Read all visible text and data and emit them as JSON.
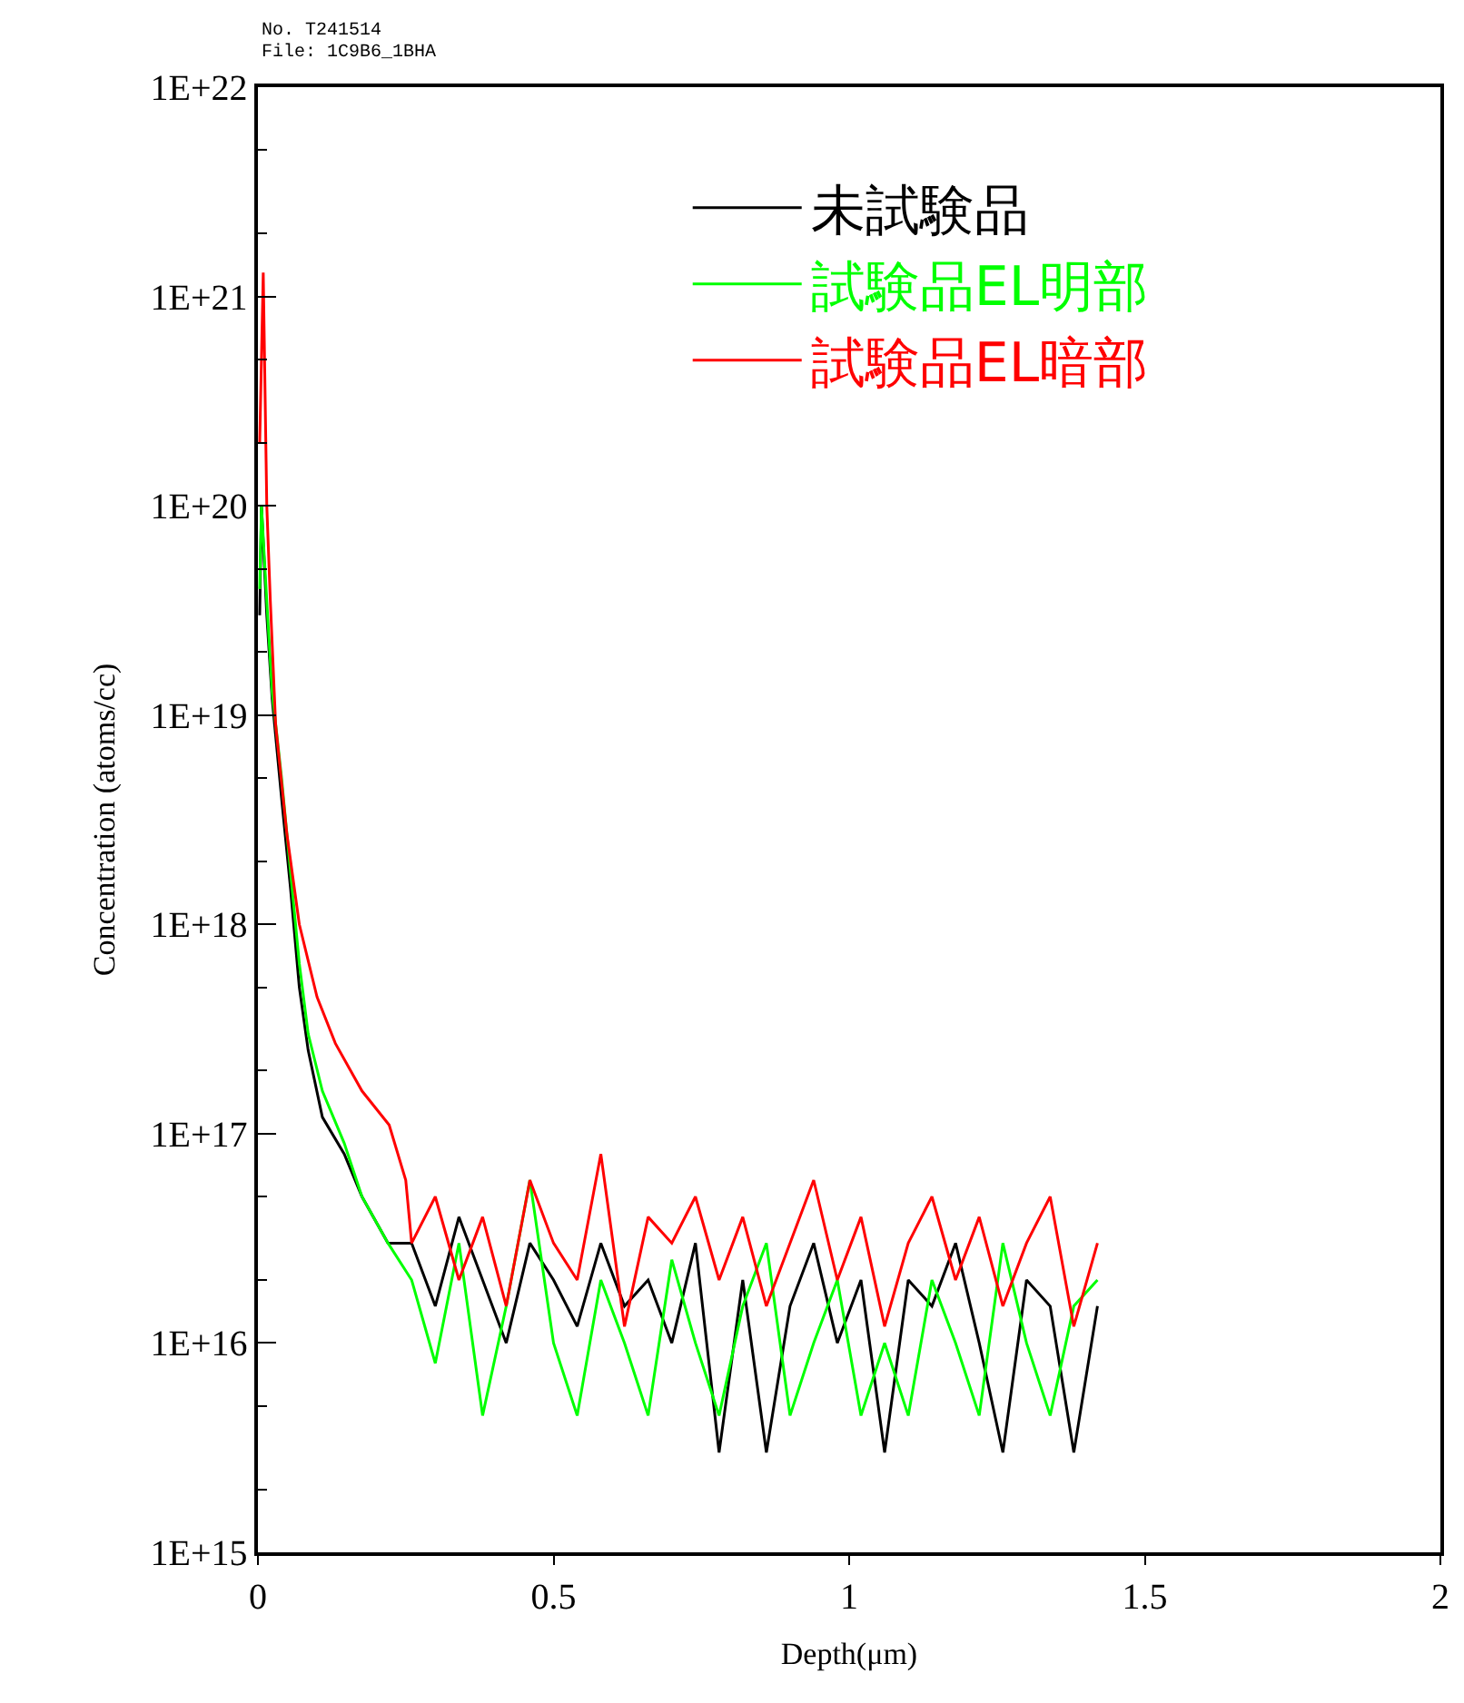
{
  "chart_data": {
    "type": "line",
    "xlabel": "Depth(μm)",
    "ylabel": "Concentration (atoms/cc)",
    "annotations": [
      "No. T241514",
      "File: 1C9B6_1BHA"
    ],
    "log": "y",
    "legend": "top right",
    "marker": "none",
    "line_style": "solid",
    "xlim": [
      0,
      2
    ],
    "xticks": [
      0,
      0.5,
      1,
      1.5,
      2
    ],
    "ylim": [
      1000000000000000.0,
      1e+22
    ],
    "yticks": [
      {
        "value": 1000000000000000.0,
        "label": "1E+15"
      },
      {
        "value": 1e+16,
        "label": "1E+16"
      },
      {
        "value": 1e+17,
        "label": "1E+17"
      },
      {
        "value": 1e+18,
        "label": "1E+18"
      },
      {
        "value": 1e+19,
        "label": "1E+19"
      },
      {
        "value": 1e+20,
        "label": "1E+20"
      },
      {
        "value": 1e+21,
        "label": "1E+21"
      },
      {
        "value": 1e+22,
        "label": "1E+22"
      }
    ],
    "series": [
      {
        "name": "未試験品",
        "color": "#000000",
        "x": [
          0.003,
          0.006,
          0.015,
          0.024,
          0.04,
          0.055,
          0.07,
          0.085,
          0.109,
          0.146,
          0.176,
          0.22,
          0.26,
          0.3,
          0.34,
          0.38,
          0.42,
          0.46,
          0.5,
          0.54,
          0.58,
          0.62,
          0.66,
          0.7,
          0.74,
          0.78,
          0.82,
          0.86,
          0.9,
          0.94,
          0.98,
          1.02,
          1.06,
          1.1,
          1.14,
          1.18,
          1.22,
          1.26,
          1.3,
          1.34,
          1.38,
          1.42
        ],
        "values": [
          3e+19,
          1e+20,
          3e+19,
          1.2e+19,
          4e+18,
          1.5e+18,
          5e+17,
          2.5e+17,
          1.2e+17,
          8e+16,
          5e+16,
          3e+16,
          3e+16,
          1.5e+16,
          4e+16,
          2e+16,
          1e+16,
          3e+16,
          2e+16,
          1.2e+16,
          3e+16,
          1.5e+16,
          2e+16,
          1e+16,
          3e+16,
          3000000000000000.0,
          2e+16,
          3000000000000000.0,
          1.5e+16,
          3e+16,
          1e+16,
          2e+16,
          3000000000000000.0,
          2e+16,
          1.5e+16,
          3e+16,
          1e+16,
          3000000000000000.0,
          2e+16,
          1.5e+16,
          3000000000000000.0,
          1.5e+16
        ]
      },
      {
        "name": "試験品EL明部",
        "color": "#00ff00",
        "x": [
          0.003,
          0.006,
          0.015,
          0.024,
          0.04,
          0.055,
          0.07,
          0.085,
          0.109,
          0.146,
          0.176,
          0.22,
          0.26,
          0.3,
          0.34,
          0.38,
          0.42,
          0.46,
          0.5,
          0.54,
          0.58,
          0.62,
          0.66,
          0.7,
          0.74,
          0.78,
          0.82,
          0.86,
          0.9,
          0.94,
          0.98,
          1.02,
          1.06,
          1.1,
          1.14,
          1.18,
          1.22,
          1.26,
          1.3,
          1.34,
          1.38,
          1.42
        ],
        "values": [
          4e+19,
          1e+20,
          3.5e+19,
          1.3e+19,
          5e+18,
          1.8e+18,
          6.5e+17,
          3e+17,
          1.6e+17,
          9e+16,
          5e+16,
          3e+16,
          2e+16,
          8000000000000000.0,
          3e+16,
          4500000000000000.0,
          1.5e+16,
          6e+16,
          1e+16,
          4500000000000000.0,
          2e+16,
          1e+16,
          4500000000000000.0,
          2.5e+16,
          1e+16,
          4500000000000000.0,
          1.5e+16,
          3e+16,
          4500000000000000.0,
          1e+16,
          2e+16,
          4500000000000000.0,
          1e+16,
          4500000000000000.0,
          2e+16,
          1e+16,
          4500000000000000.0,
          3e+16,
          1e+16,
          4500000000000000.0,
          1.5e+16,
          2e+16
        ]
      },
      {
        "name": "試験品EL暗部",
        "color": "#ff0000",
        "x": [
          0.003,
          0.009,
          0.015,
          0.021,
          0.03,
          0.049,
          0.07,
          0.1,
          0.131,
          0.176,
          0.222,
          0.25,
          0.26,
          0.3,
          0.34,
          0.38,
          0.42,
          0.46,
          0.5,
          0.54,
          0.58,
          0.62,
          0.66,
          0.7,
          0.74,
          0.78,
          0.82,
          0.86,
          0.9,
          0.94,
          0.98,
          1.02,
          1.06,
          1.1,
          1.14,
          1.18,
          1.22,
          1.26,
          1.3,
          1.34,
          1.38,
          1.42
        ],
        "values": [
          2e+20,
          1.3e+21,
          1e+20,
          3.5e+19,
          9e+18,
          2.7e+18,
          1e+18,
          4.5e+17,
          2.7e+17,
          1.6e+17,
          1.1e+17,
          6e+16,
          3e+16,
          5e+16,
          2e+16,
          4e+16,
          1.5e+16,
          6e+16,
          3e+16,
          2e+16,
          8e+16,
          1.2e+16,
          4e+16,
          3e+16,
          5e+16,
          2e+16,
          4e+16,
          1.5e+16,
          3e+16,
          6e+16,
          2e+16,
          4e+16,
          1.2e+16,
          3e+16,
          5e+16,
          2e+16,
          4e+16,
          1.5e+16,
          3e+16,
          5e+16,
          1.2e+16,
          3e+16
        ]
      }
    ]
  }
}
